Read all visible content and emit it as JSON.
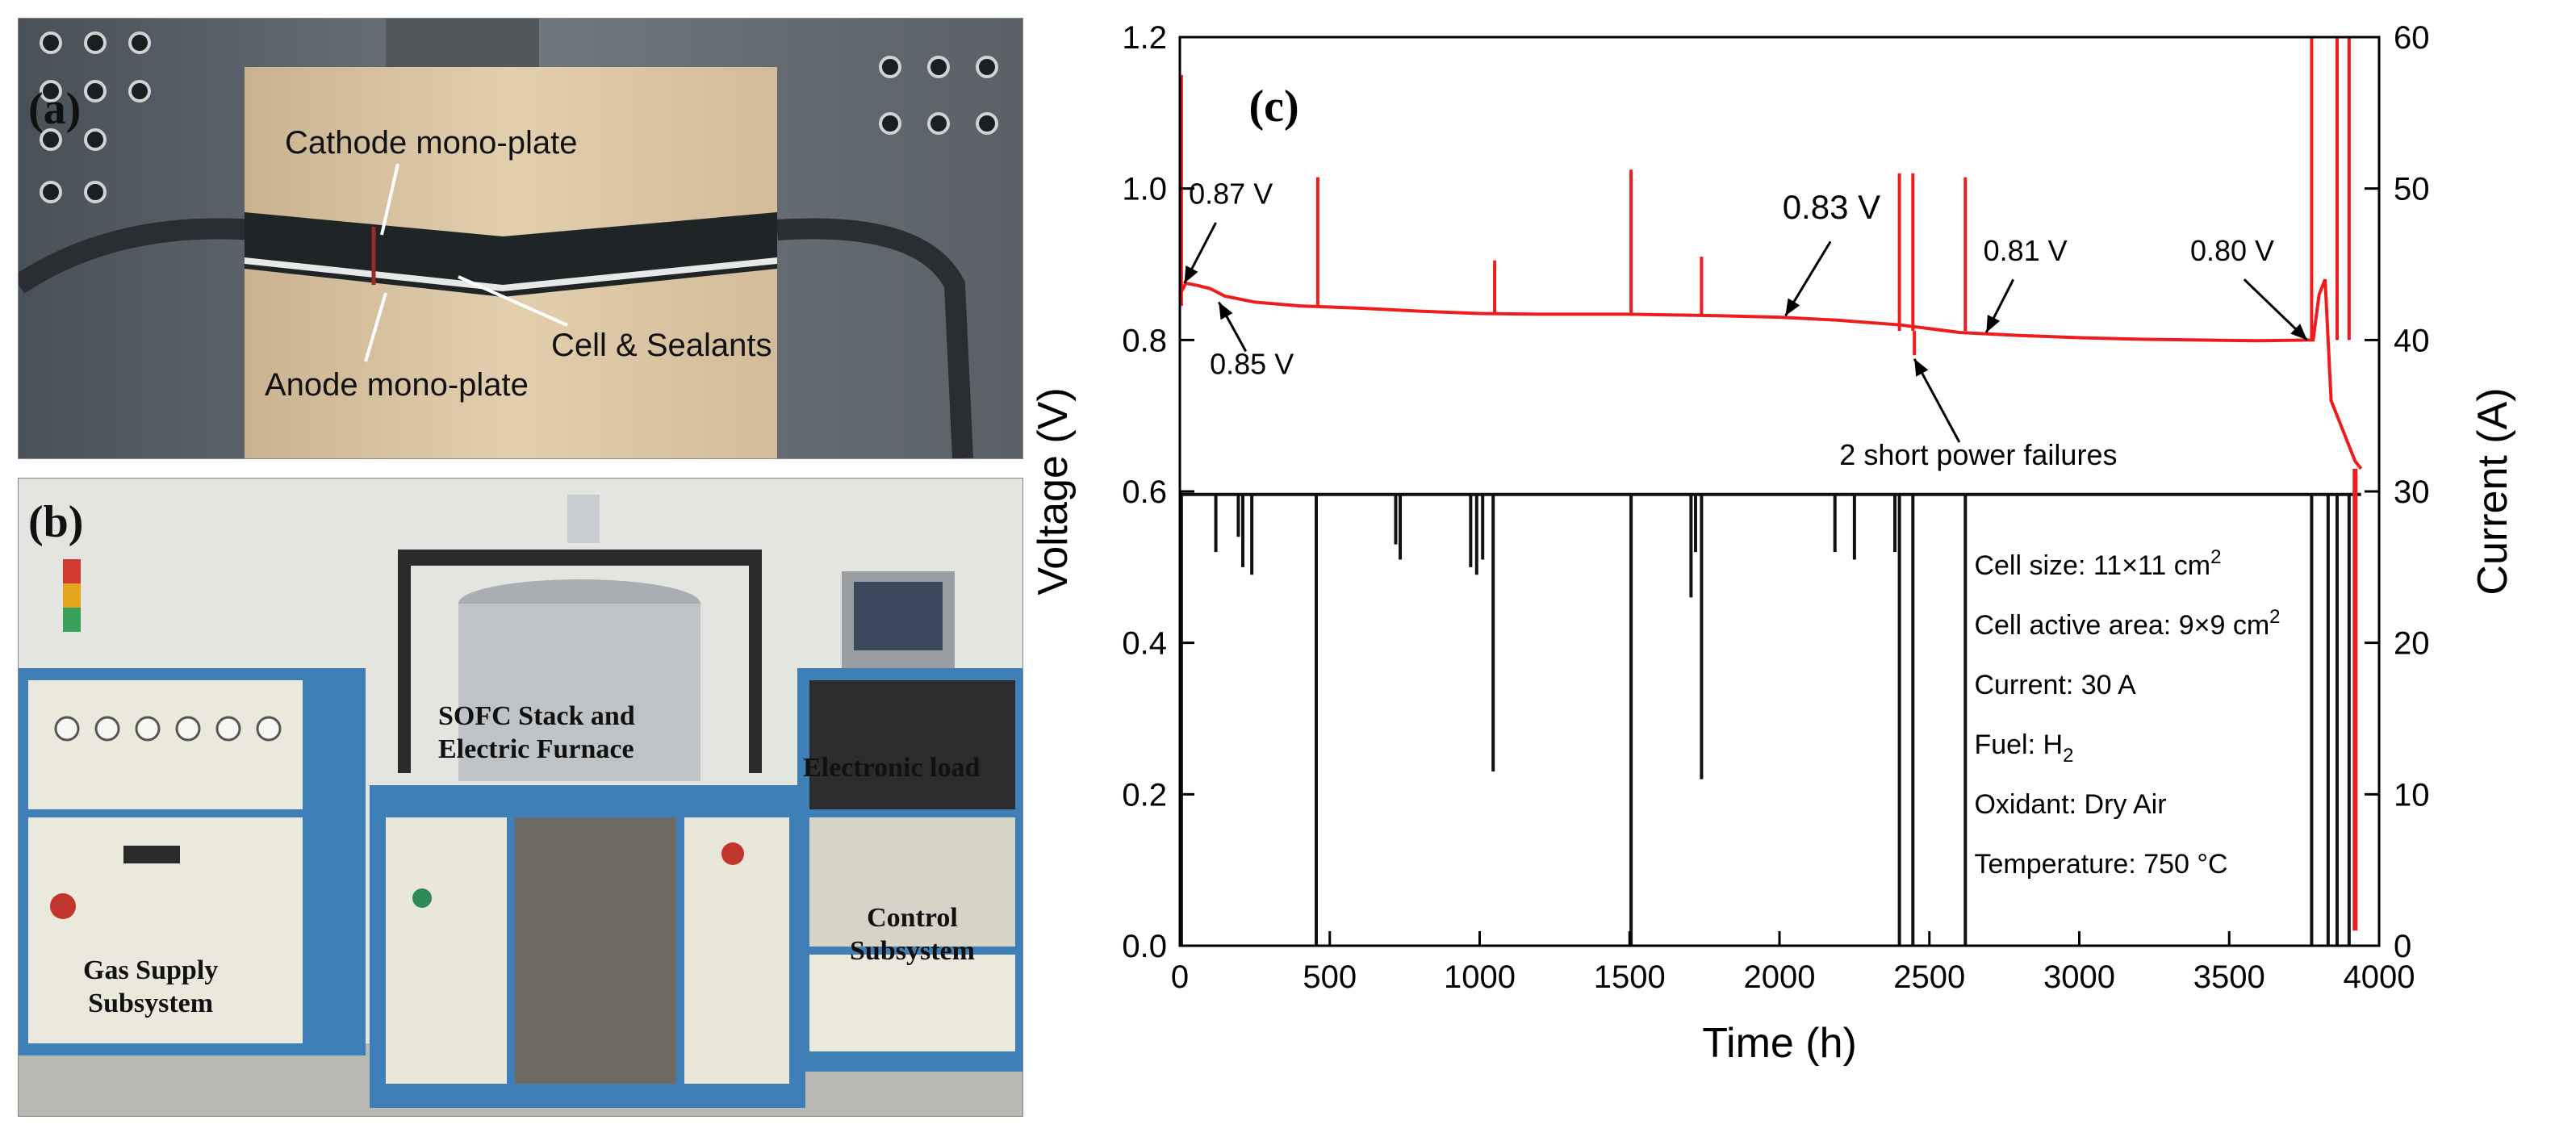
{
  "panel_a": {
    "label": "(a)",
    "annotations": [
      "Cathode mono-plate",
      "Cell & Sealants",
      "Anode mono-plate"
    ],
    "colors": {
      "sky": "#3c424a",
      "brick": "#d8c3a2",
      "band": "#1e2326",
      "pipe": "#2b2f33"
    }
  },
  "panel_b": {
    "label": "(b)",
    "annotations": [
      "SOFC Stack and\nElectric Furnace",
      "Electronic load",
      "Control\nSubsystem",
      "Gas Supply\nSubsystem"
    ],
    "colors": {
      "wall": "#e6e6e4",
      "cabinet": "#e9e6da",
      "frame": "#3d7fb6",
      "steel": "#bfc3c6"
    }
  },
  "chart_data": {
    "type": "line",
    "panel_label": "(c)",
    "xlabel": "Time (h)",
    "ylabel_left": "Voltage (V)",
    "ylabel_right": "Current (A)",
    "xlim": [
      0,
      4000
    ],
    "ylim_left": [
      0.0,
      1.2
    ],
    "ylim_right": [
      0,
      60
    ],
    "x_ticks": [
      "0",
      "500",
      "1000",
      "1500",
      "2000",
      "2500",
      "3000",
      "3500",
      "4000"
    ],
    "y_ticks_left": [
      "0.0",
      "0.2",
      "0.4",
      "0.6",
      "0.8",
      "1.0",
      "1.2"
    ],
    "y_ticks_right": [
      "0",
      "10",
      "20",
      "30",
      "40",
      "50",
      "60"
    ],
    "series": [
      {
        "axis": "left",
        "color": "#ee1c1c",
        "x": [
          0,
          20,
          60,
          100,
          150,
          250,
          400,
          600,
          800,
          1000,
          1200,
          1500,
          1800,
          2000,
          2200,
          2400,
          2600,
          2800,
          3000,
          3200,
          3400,
          3600,
          3780,
          3800,
          3820,
          3840,
          3860,
          3880,
          3900,
          3920,
          3940
        ],
        "values": [
          0.86,
          0.875,
          0.872,
          0.868,
          0.858,
          0.85,
          0.845,
          0.842,
          0.838,
          0.835,
          0.834,
          0.834,
          0.832,
          0.83,
          0.826,
          0.82,
          0.81,
          0.806,
          0.803,
          0.801,
          0.8,
          0.799,
          0.8,
          0.86,
          0.88,
          0.72,
          0.7,
          0.68,
          0.66,
          0.64,
          0.63
        ],
        "spikes": [
          {
            "x": 5,
            "y": 1.15
          },
          {
            "x": 460,
            "y": 1.015
          },
          {
            "x": 1050,
            "y": 0.905
          },
          {
            "x": 1505,
            "y": 1.025
          },
          {
            "x": 1740,
            "y": 0.91
          },
          {
            "x": 2400,
            "y": 1.02
          },
          {
            "x": 2445,
            "y": 1.02
          },
          {
            "x": 2620,
            "y": 1.015
          },
          {
            "x": 2450,
            "y": 0.78
          },
          {
            "x": 3775,
            "y": 1.2
          },
          {
            "x": 3860,
            "y": 1.2
          },
          {
            "x": 3900,
            "y": 1.2
          }
        ]
      },
      {
        "axis": "right",
        "color": "#111111",
        "x": [
          0,
          3770,
          3940
        ],
        "values": [
          29.8,
          29.8,
          29.8
        ],
        "dips": [
          {
            "x": 5,
            "y": 0
          },
          {
            "x": 120,
            "y": 26.0
          },
          {
            "x": 195,
            "y": 27.0
          },
          {
            "x": 210,
            "y": 25.0
          },
          {
            "x": 240,
            "y": 24.5
          },
          {
            "x": 455,
            "y": 0
          },
          {
            "x": 720,
            "y": 26.5
          },
          {
            "x": 735,
            "y": 25.5
          },
          {
            "x": 970,
            "y": 25.0
          },
          {
            "x": 990,
            "y": 24.5
          },
          {
            "x": 1010,
            "y": 25.5
          },
          {
            "x": 1045,
            "y": 11.5
          },
          {
            "x": 1505,
            "y": 0
          },
          {
            "x": 1705,
            "y": 23.0
          },
          {
            "x": 1720,
            "y": 26.0
          },
          {
            "x": 1740,
            "y": 11.0
          },
          {
            "x": 2185,
            "y": 26.0
          },
          {
            "x": 2250,
            "y": 25.5
          },
          {
            "x": 2385,
            "y": 26.0
          },
          {
            "x": 2400,
            "y": 0
          },
          {
            "x": 2445,
            "y": 0
          },
          {
            "x": 2620,
            "y": 0
          },
          {
            "x": 3775,
            "y": 0
          },
          {
            "x": 3830,
            "y": 0
          },
          {
            "x": 3860,
            "y": 0
          },
          {
            "x": 3900,
            "y": 0
          }
        ]
      }
    ],
    "annotations": [
      {
        "text": "0.87 V",
        "x": 100,
        "y": 0.875
      },
      {
        "text": "0.85 V",
        "x": 130,
        "y": 0.848
      },
      {
        "text": "0.83 V",
        "x": 2020,
        "y": 0.83
      },
      {
        "text": "0.81 V",
        "x": 2690,
        "y": 0.808
      },
      {
        "text": "0.80 V",
        "x": 3740,
        "y": 0.8
      },
      {
        "text": "2 short power failures",
        "x": 2450,
        "y": 0.76
      }
    ],
    "info_box": [
      "Cell size: 11×11 cm",
      "Cell active area: 9×9 cm",
      "Current: 30 A",
      "Fuel: H",
      "Oxidant: Dry Air",
      "Temperature: 750 °C"
    ],
    "info_superscripts": [
      "2",
      "2",
      "",
      "",
      "",
      ""
    ],
    "info_subscripts": [
      "",
      "",
      "",
      "2",
      "",
      ""
    ]
  }
}
